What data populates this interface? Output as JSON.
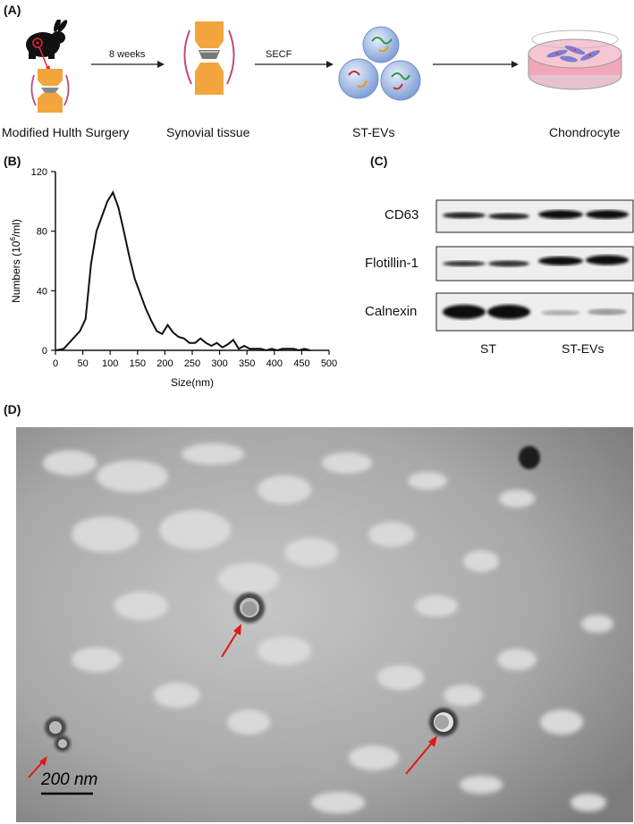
{
  "panels": {
    "a": {
      "label": "(A)",
      "steps": [
        "Modified Hulth Surgery",
        "Synovial tissue",
        "ST-EVs",
        "Chondrocyte"
      ],
      "arrows": [
        "8 weeks",
        "SECF",
        ""
      ]
    },
    "b": {
      "label": "(B)"
    },
    "c": {
      "label": "(C)",
      "rows": [
        "CD63",
        "Flotillin-1",
        "Calnexin"
      ],
      "groups": [
        "ST",
        "ST-EVs"
      ]
    },
    "d": {
      "label": "(D)",
      "scale_bar": "200 nm"
    }
  },
  "chart_data": {
    "type": "line",
    "xlabel": "Size(nm)",
    "ylabel_main": "Numbers (10",
    "ylabel_sup": "6",
    "ylabel_tail": "/ml)",
    "xlim": [
      0,
      500
    ],
    "ylim": [
      0,
      120
    ],
    "xticks": [
      0,
      50,
      100,
      150,
      200,
      250,
      300,
      350,
      400,
      450,
      500
    ],
    "yticks": [
      0,
      40,
      80,
      120
    ],
    "series": [
      {
        "x": [
          0,
          15,
          25,
          35,
          45,
          55,
          65,
          75,
          85,
          95,
          105,
          115,
          125,
          135,
          145,
          155,
          165,
          175,
          185,
          195,
          205,
          215,
          225,
          235,
          245,
          255,
          265,
          275,
          285,
          295,
          305,
          315,
          325,
          335,
          345,
          355,
          365,
          375,
          385,
          395,
          405,
          415,
          425,
          435,
          445,
          455,
          465
        ],
        "y": [
          0,
          1,
          5,
          9,
          13,
          21,
          58,
          80,
          90,
          100,
          106,
          96,
          80,
          63,
          48,
          38,
          28,
          20,
          13,
          11,
          17,
          12,
          9,
          8,
          5,
          5,
          8,
          5,
          3,
          5,
          2,
          4,
          7,
          1,
          3,
          1,
          1,
          1,
          0,
          1,
          0,
          1,
          1,
          1,
          0,
          1,
          0
        ]
      }
    ]
  }
}
